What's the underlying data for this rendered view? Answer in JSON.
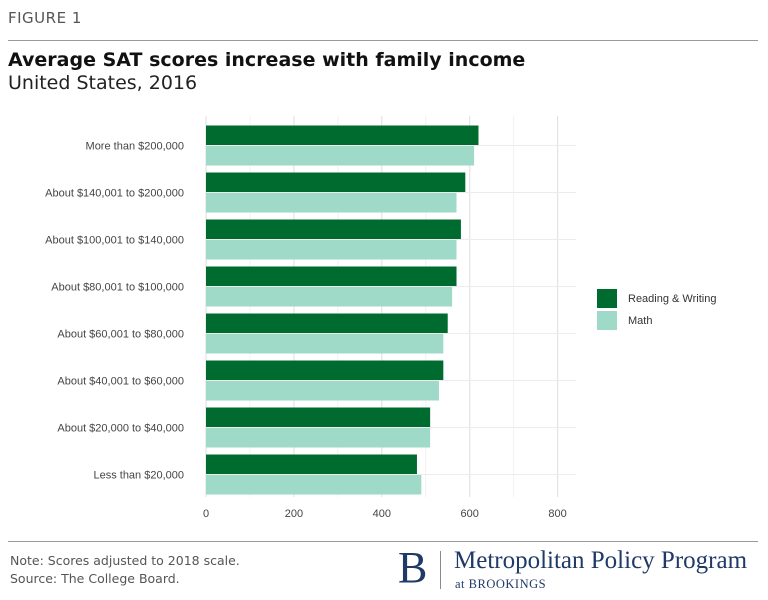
{
  "figure_label": "FIGURE 1",
  "chart_data": {
    "type": "bar",
    "orientation": "horizontal",
    "title": "Average SAT scores increase with family income",
    "subtitle": "United States, 2016",
    "categories": [
      "More than $200,000",
      "About $140,001 to $200,000",
      "About $100,001 to $140,000",
      "About $80,001 to $100,000",
      "About $60,001 to $80,000",
      "About $40,001 to $60,000",
      "About $20,000 to $40,000",
      "Less than $20,000"
    ],
    "series": [
      {
        "name": "Reading & Writing",
        "color": "#006b2f",
        "values": [
          620,
          590,
          580,
          570,
          550,
          540,
          510,
          480
        ]
      },
      {
        "name": "Math",
        "color": "#9fd9c8",
        "values": [
          610,
          570,
          570,
          560,
          540,
          530,
          510,
          490
        ]
      }
    ],
    "x_ticks": [
      "0",
      "200",
      "400",
      "600",
      "800"
    ],
    "xlim": [
      0,
      840
    ],
    "grid": true,
    "legend_position": "right"
  },
  "footer": {
    "note": "Note: Scores adjusted to 2018 scale.",
    "source": "Source: The College Board.",
    "brand_letter": "B",
    "brand_name": "Metropolitan Policy Program",
    "brand_sub": "at BROOKINGS"
  }
}
